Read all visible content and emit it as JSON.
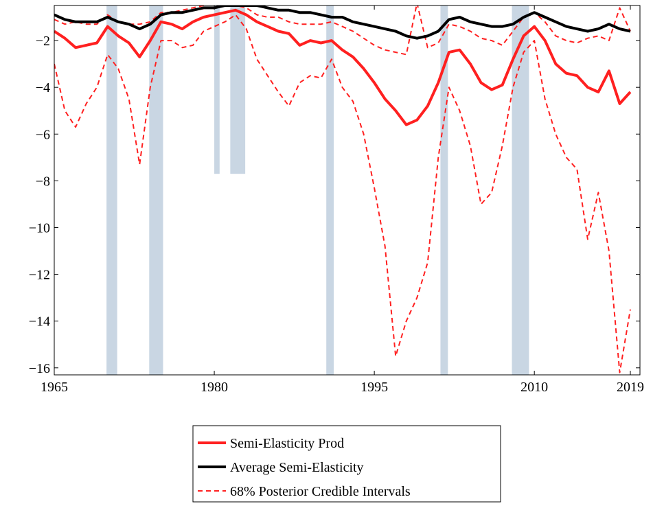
{
  "chart_data": {
    "type": "line",
    "x": [
      1965,
      1966,
      1967,
      1968,
      1969,
      1970,
      1971,
      1972,
      1973,
      1974,
      1975,
      1976,
      1977,
      1978,
      1979,
      1980,
      1981,
      1982,
      1983,
      1984,
      1985,
      1986,
      1987,
      1988,
      1989,
      1990,
      1991,
      1992,
      1993,
      1994,
      1995,
      1996,
      1997,
      1998,
      1999,
      2000,
      2001,
      2002,
      2003,
      2004,
      2005,
      2006,
      2007,
      2008,
      2009,
      2010,
      2011,
      2012,
      2013,
      2014,
      2015,
      2016,
      2017,
      2018,
      2019
    ],
    "series": [
      {
        "name": "Semi-Elasticity Prod",
        "color": "#ff2020",
        "width": 4,
        "values": [
          -1.6,
          -1.9,
          -2.3,
          -2.2,
          -2.1,
          -1.4,
          -1.8,
          -2.1,
          -2.7,
          -2.0,
          -1.2,
          -1.3,
          -1.5,
          -1.2,
          -1.0,
          -0.9,
          -0.8,
          -0.7,
          -0.9,
          -1.2,
          -1.4,
          -1.6,
          -1.7,
          -2.2,
          -2.0,
          -2.1,
          -2.0,
          -2.4,
          -2.7,
          -3.2,
          -3.8,
          -4.5,
          -5.0,
          -5.6,
          -5.4,
          -4.8,
          -3.8,
          -2.5,
          -2.4,
          -3.0,
          -3.8,
          -4.1,
          -3.9,
          -2.8,
          -1.8,
          -1.4,
          -2.0,
          -3.0,
          -3.4,
          -3.5,
          -4.0,
          -4.2,
          -3.3,
          -4.7,
          -4.2
        ]
      },
      {
        "name": "Average Semi-Elasticity",
        "color": "#000000",
        "width": 4,
        "values": [
          -0.9,
          -1.1,
          -1.2,
          -1.2,
          -1.2,
          -1.0,
          -1.2,
          -1.3,
          -1.5,
          -1.3,
          -0.9,
          -0.8,
          -0.8,
          -0.7,
          -0.6,
          -0.6,
          -0.5,
          -0.5,
          -0.5,
          -0.5,
          -0.6,
          -0.7,
          -0.7,
          -0.8,
          -0.8,
          -0.9,
          -1.0,
          -1.0,
          -1.2,
          -1.3,
          -1.4,
          -1.5,
          -1.6,
          -1.8,
          -1.9,
          -1.8,
          -1.6,
          -1.1,
          -1.0,
          -1.2,
          -1.3,
          -1.4,
          -1.4,
          -1.3,
          -1.0,
          -0.8,
          -1.0,
          -1.2,
          -1.4,
          -1.5,
          -1.6,
          -1.5,
          -1.3,
          -1.5,
          -1.6
        ]
      },
      {
        "name": "68% Posterior Credible Intervals",
        "color": "#ff2020",
        "width": 2,
        "dashed": true,
        "values": [
          -1.1,
          -1.3,
          -1.2,
          -1.3,
          -1.3,
          -0.9,
          -1.2,
          -1.3,
          -1.3,
          -1.2,
          -0.8,
          -0.8,
          -0.7,
          -0.6,
          -0.5,
          -0.4,
          -0.5,
          -0.5,
          -0.6,
          -0.9,
          -1.0,
          -1.0,
          -1.2,
          -1.3,
          -1.3,
          -1.3,
          -1.2,
          -1.4,
          -1.6,
          -1.9,
          -2.2,
          -2.4,
          -2.5,
          -2.6,
          -0.4,
          -2.3,
          -2.1,
          -1.3,
          -1.4,
          -1.6,
          -1.9,
          -2.0,
          -2.2,
          -1.6,
          -1.0,
          -0.8,
          -1.2,
          -1.8,
          -2.0,
          -2.1,
          -1.9,
          -1.8,
          -2.0,
          -0.6,
          -1.6
        ],
        "lower": [
          -3.0,
          -5.0,
          -5.7,
          -4.7,
          -4.0,
          -2.6,
          -3.2,
          -4.5,
          -7.3,
          -4.0,
          -2.0,
          -2.0,
          -2.3,
          -2.2,
          -1.6,
          -1.4,
          -1.2,
          -0.9,
          -1.5,
          -2.8,
          -3.5,
          -4.2,
          -4.8,
          -3.8,
          -3.5,
          -3.6,
          -2.8,
          -4.0,
          -4.6,
          -6.0,
          -8.3,
          -10.8,
          -15.5,
          -14.0,
          -13.0,
          -11.5,
          -7.0,
          -4.0,
          -5.0,
          -6.5,
          -9.0,
          -8.5,
          -6.5,
          -4.0,
          -2.5,
          -2.0,
          -4.5,
          -6.0,
          -7.0,
          -7.5,
          -10.5,
          -8.5,
          -11.0,
          -16.2,
          -13.5
        ]
      }
    ],
    "shading": [
      {
        "x": [
          1969.9,
          1970.9
        ],
        "y": [
          -16.3,
          -0.5
        ]
      },
      {
        "x": [
          1973.9,
          1975.2
        ],
        "y": [
          -16.3,
          -0.5
        ]
      },
      {
        "x": [
          1980.0,
          1980.5
        ],
        "y": [
          -7.7,
          -0.5
        ]
      },
      {
        "x": [
          1981.5,
          1982.9
        ],
        "y": [
          -7.7,
          -0.5
        ]
      },
      {
        "x": [
          1990.5,
          1991.2
        ],
        "y": [
          -16.3,
          -0.5
        ]
      },
      {
        "x": [
          2001.2,
          2001.9
        ],
        "y": [
          -16.3,
          -0.5
        ]
      },
      {
        "x": [
          2007.9,
          2009.5
        ],
        "y": [
          -16.3,
          -0.5
        ]
      }
    ],
    "shading_color": "#c9d6e3",
    "xlim": [
      1965,
      2019.9
    ],
    "xticks": [
      1965,
      1980,
      1995,
      2010,
      2019
    ],
    "ylim": [
      -16.3,
      -0.5
    ],
    "yticks": [
      {
        "value": -2,
        "label": "−2"
      },
      {
        "value": -4,
        "label": "−4"
      },
      {
        "value": -6,
        "label": "−6"
      },
      {
        "value": -8,
        "label": "−8"
      },
      {
        "value": -10,
        "label": "−10"
      },
      {
        "value": -12,
        "label": "−12"
      },
      {
        "value": -14,
        "label": "−14"
      },
      {
        "value": -16,
        "label": "−16"
      }
    ],
    "grid": false,
    "legend": "bottom"
  }
}
